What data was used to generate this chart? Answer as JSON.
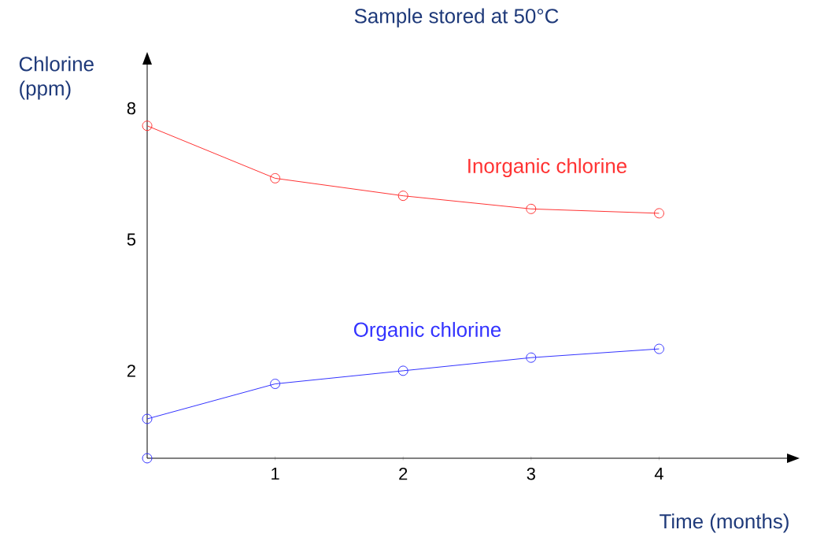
{
  "chart_data": {
    "type": "line",
    "title": "Sample stored at 50°C",
    "xlabel": "Time (months)",
    "ylabel": "Chlorine (ppm)",
    "x": [
      0,
      1,
      2,
      3,
      4
    ],
    "series": [
      {
        "name": "Inorganic chlorine",
        "color": "#ff3333",
        "values": [
          7.6,
          6.4,
          6.0,
          5.7,
          5.6
        ]
      },
      {
        "name": "Organic chlorine",
        "color": "#3333ff",
        "values": [
          0.9,
          1.7,
          2.0,
          2.3,
          2.5
        ]
      },
      {
        "type": "scatter",
        "color": "#3333ff",
        "x": [
          0
        ],
        "values": [
          0
        ]
      }
    ],
    "xlim": [
      0,
      5
    ],
    "ylim": [
      0,
      9
    ],
    "xticks": [
      1,
      2,
      3,
      4
    ],
    "yticks": [
      2,
      5,
      8
    ],
    "marker": "circle",
    "grid": false
  }
}
